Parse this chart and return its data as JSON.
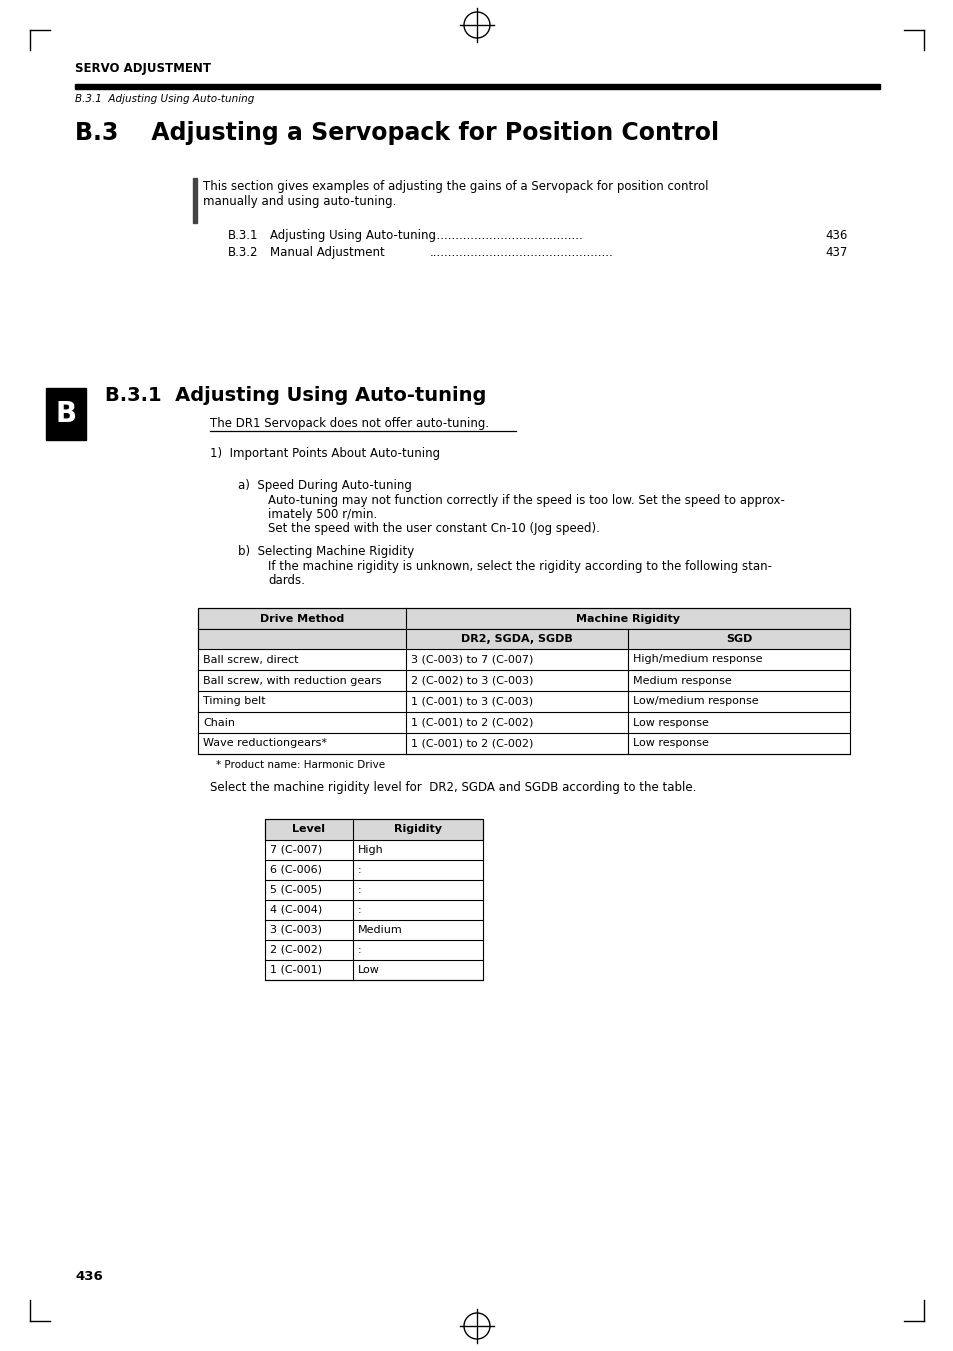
{
  "page_bg": "#ffffff",
  "header_text": "SERVO ADJUSTMENT",
  "subheader_text": "B.3.1  Adjusting Using Auto-tuning",
  "main_title": "B.3    Adjusting a Servopack for Position Control",
  "intro_line1": "This section gives examples of adjusting the gains of a Servopack for position control",
  "intro_line2": "manually and using auto-tuning.",
  "toc": [
    {
      "label": "B.3.1",
      "title": "Adjusting Using Auto-tuning",
      "dots": ".........................................",
      "page": "436"
    },
    {
      "label": "B.3.2",
      "title": "Manual Adjustment",
      "dots": ".................................................",
      "page": "437"
    }
  ],
  "section_title": "B.3.1  Adjusting Using Auto-tuning",
  "underline_note": "The DR1 Servopack does not offer auto-tuning.",
  "point1_label": "1)  Important Points About Auto-tuning",
  "point_a_label": "a)  Speed During Auto-tuning",
  "point_a_lines": [
    "Auto-tuning may not function correctly if the speed is too low. Set the speed to approx-",
    "imately 500 r/min.",
    "Set the speed with the user constant Cn-10 (Jog speed)."
  ],
  "point_b_label": "b)  Selecting Machine Rigidity",
  "point_b_lines": [
    "If the machine rigidity is unknown, select the rigidity according to the following stan-",
    "dards."
  ],
  "table1_headers": [
    "Drive Method",
    "Machine Rigidity"
  ],
  "table1_sub_headers": [
    "DR2, SGDA, SGDB",
    "SGD"
  ],
  "table1_rows": [
    [
      "Ball screw, direct",
      "3 (C-003) to 7 (C-007)",
      "High/medium response"
    ],
    [
      "Ball screw, with reduction gears",
      "2 (C-002) to 3 (C-003)",
      "Medium response"
    ],
    [
      "Timing belt",
      "1 (C-001) to 3 (C-003)",
      "Low/medium response"
    ],
    [
      "Chain",
      "1 (C-001) to 2 (C-002)",
      "Low response"
    ],
    [
      "Wave reductiongears*",
      "1 (C-001) to 2 (C-002)",
      "Low response"
    ]
  ],
  "table1_footnote": "* Product name: Harmonic Drive",
  "select_text": "Select the machine rigidity level for  DR2, SGDA and SGDB according to the table.",
  "table2_headers": [
    "Level",
    "Rigidity"
  ],
  "table2_rows": [
    [
      "7 (C-007)",
      "High"
    ],
    [
      "6 (C-006)",
      ":"
    ],
    [
      "5 (C-005)",
      ":"
    ],
    [
      "4 (C-004)",
      ":"
    ],
    [
      "3 (C-003)",
      "Medium"
    ],
    [
      "2 (C-002)",
      ":"
    ],
    [
      "1 (C-001)",
      "Low"
    ]
  ],
  "page_number": "436",
  "sidebar_letter": "B"
}
